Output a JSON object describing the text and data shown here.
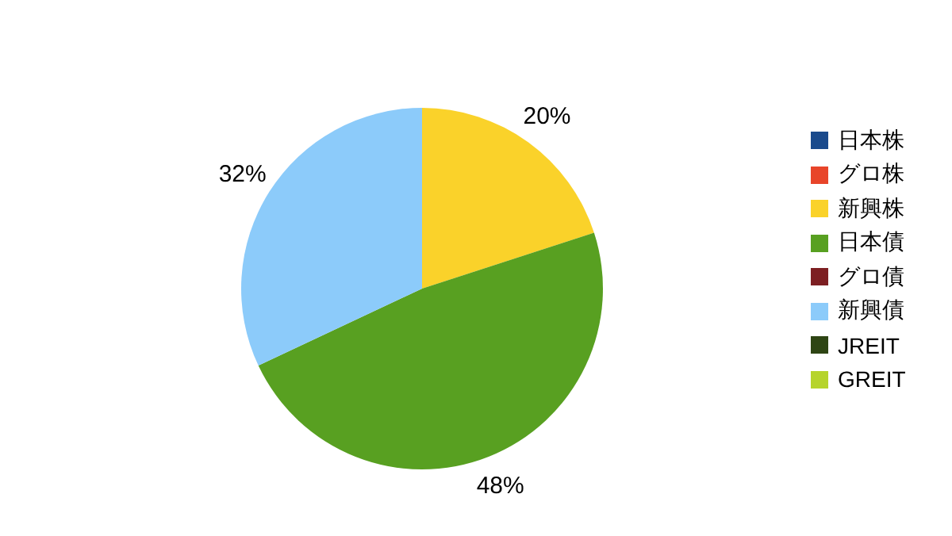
{
  "chart_data": {
    "type": "pie",
    "categories": [
      "日本株",
      "グロ株",
      "新興株",
      "日本債",
      "グロ債",
      "新興債",
      "JREIT",
      "GREIT"
    ],
    "values": [
      0,
      0,
      20,
      48,
      0,
      32,
      0,
      0
    ],
    "value_labels": [
      null,
      null,
      "20%",
      "48%",
      null,
      "32%",
      null,
      null
    ],
    "colors": [
      "#1a4a8c",
      "#e8452a",
      "#fad22a",
      "#58a021",
      "#7d1f22",
      "#8ccbfa",
      "#2e4514",
      "#b6d42c"
    ],
    "legend": "right"
  }
}
